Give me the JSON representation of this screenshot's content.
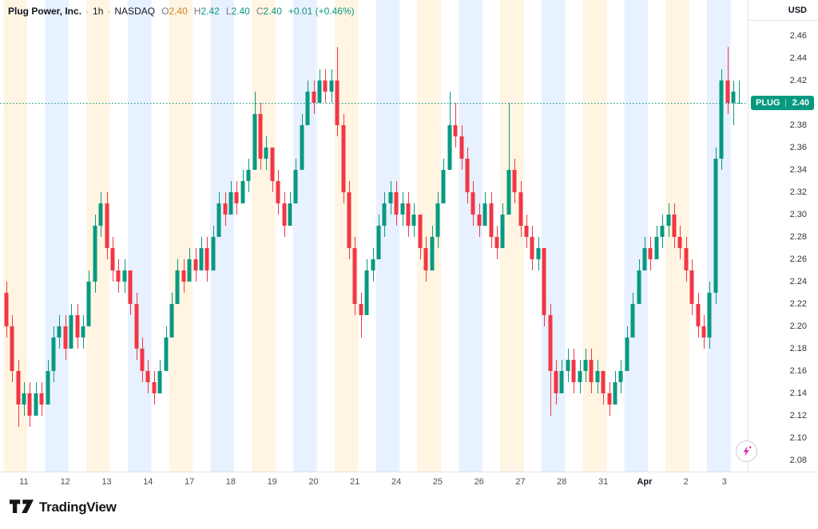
{
  "header": {
    "title": "Plug Power, Inc.",
    "sep": "·",
    "interval": "1h",
    "exchange": "NASDAQ",
    "ohlc": {
      "o_label": "O",
      "o": "2.40",
      "h_label": "H",
      "h": "2.42",
      "l_label": "L",
      "l": "2.40",
      "c_label": "C",
      "c": "2.40",
      "change": "+0.01 (+0.46%)"
    }
  },
  "price_axis": {
    "currency": "USD",
    "badge": {
      "symbol": "PLUG",
      "price": "2.40"
    },
    "ticks": [
      "2.46",
      "2.44",
      "2.42",
      "2.40",
      "2.38",
      "2.36",
      "2.34",
      "2.32",
      "2.30",
      "2.28",
      "2.26",
      "2.24",
      "2.22",
      "2.20",
      "2.18",
      "2.16",
      "2.14",
      "2.12",
      "2.10",
      "2.08"
    ]
  },
  "footer": {
    "brand": "TradingView"
  },
  "icons": {
    "boost": "lightning-icon",
    "brand": "tradingview-logo-icon"
  },
  "colors": {
    "up": "#089981",
    "down": "#f23645",
    "text": "#131722",
    "muted": "#787b86",
    "border": "#e0e3eb",
    "open": "#d1861a",
    "pink": "#e12aa8"
  },
  "chart_data": {
    "type": "candlestick",
    "title": "Plug Power, Inc.",
    "symbol": "PLUG",
    "exchange": "NASDAQ",
    "interval": "1h",
    "currency": "USD",
    "grid": "off",
    "last_price": 2.4,
    "y_axis": {
      "min": 2.07,
      "max": 2.492,
      "tick_step": 0.02
    },
    "session_colors": [
      "rgba(255,224,166,0.33)",
      "rgba(178,207,255,0.30)"
    ],
    "days": [
      {
        "label": "11",
        "candles": [
          [
            2.23,
            2.24,
            2.19,
            2.2
          ],
          [
            2.2,
            2.21,
            2.15,
            2.16
          ],
          [
            2.16,
            2.17,
            2.11,
            2.13
          ],
          [
            2.13,
            2.15,
            2.12,
            2.14
          ],
          [
            2.14,
            2.15,
            2.11,
            2.12
          ],
          [
            2.12,
            2.15,
            2.12,
            2.14
          ],
          [
            2.14,
            2.15,
            2.12,
            2.13
          ]
        ]
      },
      {
        "label": "12",
        "candles": [
          [
            2.13,
            2.17,
            2.13,
            2.16
          ],
          [
            2.16,
            2.2,
            2.15,
            2.19
          ],
          [
            2.19,
            2.21,
            2.18,
            2.2
          ],
          [
            2.2,
            2.21,
            2.17,
            2.18
          ],
          [
            2.18,
            2.22,
            2.18,
            2.21
          ],
          [
            2.21,
            2.22,
            2.18,
            2.19
          ],
          [
            2.19,
            2.21,
            2.18,
            2.2
          ]
        ]
      },
      {
        "label": "13",
        "candles": [
          [
            2.2,
            2.25,
            2.2,
            2.24
          ],
          [
            2.24,
            2.3,
            2.23,
            2.29
          ],
          [
            2.29,
            2.32,
            2.28,
            2.31
          ],
          [
            2.31,
            2.32,
            2.26,
            2.27
          ],
          [
            2.27,
            2.28,
            2.24,
            2.25
          ],
          [
            2.25,
            2.26,
            2.23,
            2.24
          ],
          [
            2.24,
            2.26,
            2.23,
            2.25
          ]
        ]
      },
      {
        "label": "14",
        "candles": [
          [
            2.25,
            2.25,
            2.21,
            2.22
          ],
          [
            2.22,
            2.23,
            2.17,
            2.18
          ],
          [
            2.18,
            2.19,
            2.15,
            2.16
          ],
          [
            2.16,
            2.17,
            2.14,
            2.15
          ],
          [
            2.15,
            2.16,
            2.13,
            2.14
          ],
          [
            2.14,
            2.17,
            2.14,
            2.16
          ],
          [
            2.16,
            2.2,
            2.16,
            2.19
          ]
        ]
      },
      {
        "label": "17",
        "candles": [
          [
            2.19,
            2.23,
            2.19,
            2.22
          ],
          [
            2.22,
            2.26,
            2.22,
            2.25
          ],
          [
            2.25,
            2.26,
            2.23,
            2.24
          ],
          [
            2.24,
            2.27,
            2.24,
            2.26
          ],
          [
            2.26,
            2.27,
            2.24,
            2.25
          ],
          [
            2.25,
            2.28,
            2.25,
            2.27
          ],
          [
            2.27,
            2.28,
            2.24,
            2.25
          ]
        ]
      },
      {
        "label": "18",
        "candles": [
          [
            2.25,
            2.29,
            2.25,
            2.28
          ],
          [
            2.28,
            2.32,
            2.28,
            2.31
          ],
          [
            2.31,
            2.32,
            2.29,
            2.3
          ],
          [
            2.3,
            2.33,
            2.3,
            2.32
          ],
          [
            2.32,
            2.33,
            2.3,
            2.31
          ],
          [
            2.31,
            2.34,
            2.31,
            2.33
          ],
          [
            2.33,
            2.35,
            2.32,
            2.34
          ]
        ]
      },
      {
        "label": "19",
        "candles": [
          [
            2.34,
            2.41,
            2.34,
            2.39
          ],
          [
            2.39,
            2.4,
            2.34,
            2.35
          ],
          [
            2.35,
            2.37,
            2.34,
            2.36
          ],
          [
            2.36,
            2.36,
            2.32,
            2.33
          ],
          [
            2.33,
            2.34,
            2.3,
            2.31
          ],
          [
            2.31,
            2.32,
            2.28,
            2.29
          ],
          [
            2.29,
            2.32,
            2.29,
            2.31
          ]
        ]
      },
      {
        "label": "20",
        "candles": [
          [
            2.31,
            2.35,
            2.31,
            2.34
          ],
          [
            2.34,
            2.39,
            2.34,
            2.38
          ],
          [
            2.38,
            2.42,
            2.38,
            2.41
          ],
          [
            2.41,
            2.42,
            2.39,
            2.4
          ],
          [
            2.4,
            2.43,
            2.4,
            2.42
          ],
          [
            2.42,
            2.43,
            2.4,
            2.41
          ],
          [
            2.41,
            2.43,
            2.4,
            2.42
          ]
        ]
      },
      {
        "label": "21",
        "candles": [
          [
            2.42,
            2.45,
            2.37,
            2.38
          ],
          [
            2.38,
            2.39,
            2.31,
            2.32
          ],
          [
            2.32,
            2.33,
            2.26,
            2.27
          ],
          [
            2.27,
            2.28,
            2.21,
            2.22
          ],
          [
            2.22,
            2.23,
            2.19,
            2.21
          ],
          [
            2.21,
            2.26,
            2.21,
            2.25
          ],
          [
            2.25,
            2.27,
            2.24,
            2.26
          ]
        ]
      },
      {
        "label": "24",
        "candles": [
          [
            2.26,
            2.3,
            2.26,
            2.29
          ],
          [
            2.29,
            2.32,
            2.28,
            2.31
          ],
          [
            2.31,
            2.33,
            2.3,
            2.32
          ],
          [
            2.32,
            2.33,
            2.29,
            2.3
          ],
          [
            2.3,
            2.32,
            2.29,
            2.31
          ],
          [
            2.31,
            2.32,
            2.28,
            2.29
          ],
          [
            2.29,
            2.31,
            2.28,
            2.3
          ]
        ]
      },
      {
        "label": "25",
        "candles": [
          [
            2.3,
            2.3,
            2.26,
            2.27
          ],
          [
            2.27,
            2.28,
            2.24,
            2.25
          ],
          [
            2.25,
            2.29,
            2.25,
            2.28
          ],
          [
            2.28,
            2.32,
            2.27,
            2.31
          ],
          [
            2.31,
            2.35,
            2.31,
            2.34
          ],
          [
            2.34,
            2.41,
            2.34,
            2.38
          ],
          [
            2.38,
            2.4,
            2.36,
            2.37
          ]
        ]
      },
      {
        "label": "26",
        "candles": [
          [
            2.37,
            2.38,
            2.34,
            2.35
          ],
          [
            2.35,
            2.36,
            2.31,
            2.32
          ],
          [
            2.32,
            2.33,
            2.29,
            2.3
          ],
          [
            2.3,
            2.31,
            2.28,
            2.29
          ],
          [
            2.29,
            2.32,
            2.29,
            2.31
          ],
          [
            2.31,
            2.32,
            2.27,
            2.28
          ],
          [
            2.28,
            2.29,
            2.26,
            2.27
          ]
        ]
      },
      {
        "label": "27",
        "candles": [
          [
            2.27,
            2.31,
            2.27,
            2.3
          ],
          [
            2.3,
            2.4,
            2.3,
            2.34
          ],
          [
            2.34,
            2.35,
            2.31,
            2.32
          ],
          [
            2.32,
            2.33,
            2.28,
            2.29
          ],
          [
            2.29,
            2.3,
            2.27,
            2.28
          ],
          [
            2.28,
            2.29,
            2.25,
            2.26
          ],
          [
            2.26,
            2.28,
            2.25,
            2.27
          ]
        ]
      },
      {
        "label": "28",
        "candles": [
          [
            2.27,
            2.27,
            2.2,
            2.21
          ],
          [
            2.21,
            2.22,
            2.12,
            2.16
          ],
          [
            2.16,
            2.17,
            2.13,
            2.14
          ],
          [
            2.14,
            2.17,
            2.14,
            2.16
          ],
          [
            2.16,
            2.18,
            2.15,
            2.17
          ],
          [
            2.17,
            2.18,
            2.14,
            2.15
          ],
          [
            2.15,
            2.17,
            2.14,
            2.16
          ]
        ]
      },
      {
        "label": "31",
        "candles": [
          [
            2.16,
            2.18,
            2.15,
            2.17
          ],
          [
            2.17,
            2.18,
            2.14,
            2.15
          ],
          [
            2.15,
            2.17,
            2.14,
            2.16
          ],
          [
            2.16,
            2.16,
            2.13,
            2.14
          ],
          [
            2.14,
            2.15,
            2.12,
            2.13
          ],
          [
            2.13,
            2.16,
            2.13,
            2.15
          ],
          [
            2.15,
            2.17,
            2.14,
            2.16
          ]
        ]
      },
      {
        "label": "Apr",
        "month": true,
        "candles": [
          [
            2.16,
            2.2,
            2.16,
            2.19
          ],
          [
            2.19,
            2.23,
            2.19,
            2.22
          ],
          [
            2.22,
            2.26,
            2.22,
            2.25
          ],
          [
            2.25,
            2.28,
            2.25,
            2.27
          ],
          [
            2.27,
            2.28,
            2.25,
            2.26
          ],
          [
            2.26,
            2.29,
            2.26,
            2.28
          ],
          [
            2.28,
            2.3,
            2.27,
            2.29
          ]
        ]
      },
      {
        "label": "2",
        "candles": [
          [
            2.29,
            2.31,
            2.28,
            2.3
          ],
          [
            2.3,
            2.31,
            2.27,
            2.28
          ],
          [
            2.28,
            2.29,
            2.26,
            2.27
          ],
          [
            2.27,
            2.28,
            2.24,
            2.25
          ],
          [
            2.25,
            2.26,
            2.21,
            2.22
          ],
          [
            2.22,
            2.23,
            2.19,
            2.2
          ],
          [
            2.2,
            2.21,
            2.18,
            2.19
          ]
        ]
      },
      {
        "label": "3",
        "candles": [
          [
            2.19,
            2.24,
            2.18,
            2.23
          ],
          [
            2.23,
            2.36,
            2.22,
            2.35
          ],
          [
            2.35,
            2.43,
            2.34,
            2.42
          ],
          [
            2.42,
            2.45,
            2.39,
            2.4
          ],
          [
            2.4,
            2.42,
            2.38,
            2.41
          ],
          [
            2.4,
            2.42,
            2.4,
            2.4
          ]
        ]
      }
    ]
  }
}
